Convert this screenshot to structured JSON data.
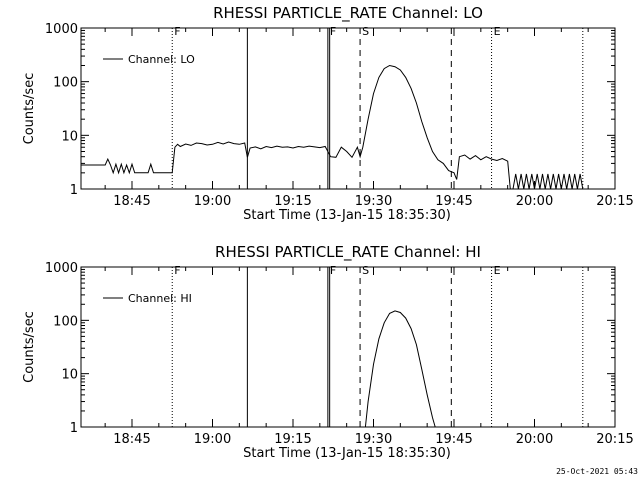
{
  "footer": {
    "timestamp": "25-Oct-2021 05:43"
  },
  "chart_data": [
    {
      "type": "line",
      "title": "RHESSI PARTICLE_RATE Channel: LO",
      "xlabel": "Start Time (13-Jan-15 18:35:30)",
      "ylabel": "Counts/sec",
      "yscale": "log",
      "ylim": [
        1,
        1000
      ],
      "xlim": [
        "18:35:30",
        "20:15:00"
      ],
      "yticks": [
        "1",
        "10",
        "100",
        "1000"
      ],
      "xticks": [
        "18:45",
        "19:00",
        "19:15",
        "19:30",
        "19:45",
        "20:00",
        "20:15"
      ],
      "legend": {
        "position": "top-left",
        "label": "Channel: LO"
      },
      "markers": [
        {
          "time": "18:52:30",
          "style": "dotted",
          "label": "F"
        },
        {
          "time": "19:06:30",
          "style": "solid",
          "label": ""
        },
        {
          "time": "19:21:30",
          "style": "solid",
          "label": "F"
        },
        {
          "time": "19:21:50",
          "style": "solid",
          "label": ""
        },
        {
          "time": "19:27:30",
          "style": "dashed",
          "label": "S"
        },
        {
          "time": "19:44:30",
          "style": "dashed",
          "label": ""
        },
        {
          "time": "19:52:00",
          "style": "dotted",
          "label": "E"
        },
        {
          "time": "20:09:00",
          "style": "dotted",
          "label": ""
        }
      ],
      "series": [
        {
          "name": "Channel: LO",
          "x": [
            "18:35:30",
            "18:40:00",
            "18:40:30",
            "18:41:00",
            "18:41:30",
            "18:42:00",
            "18:42:30",
            "18:43:00",
            "18:43:30",
            "18:44:00",
            "18:44:30",
            "18:45:00",
            "18:45:30",
            "18:46:00",
            "18:46:30",
            "18:47:00",
            "18:47:30",
            "18:48:00",
            "18:48:30",
            "18:49:00",
            "18:49:30",
            "18:50:00",
            "18:50:30",
            "18:51:00",
            "18:51:30",
            "18:52:00",
            "18:52:30",
            "18:53:00",
            "18:53:30",
            "18:54:00",
            "18:55:00",
            "18:56:00",
            "18:57:00",
            "18:58:00",
            "18:59:00",
            "19:00:00",
            "19:01:00",
            "19:02:00",
            "19:03:00",
            "19:04:00",
            "19:05:00",
            "19:06:00",
            "19:06:30",
            "19:07:00",
            "19:08:00",
            "19:09:00",
            "19:10:00",
            "19:11:00",
            "19:12:00",
            "19:13:00",
            "19:14:00",
            "19:15:00",
            "19:16:00",
            "19:17:00",
            "19:18:00",
            "19:19:00",
            "19:20:00",
            "19:21:00",
            "19:22:00",
            "19:23:00",
            "19:24:00",
            "19:25:00",
            "19:26:00",
            "19:27:00",
            "19:27:30",
            "19:28:00",
            "19:29:00",
            "19:30:00",
            "19:31:00",
            "19:32:00",
            "19:33:00",
            "19:34:00",
            "19:35:00",
            "19:36:00",
            "19:37:00",
            "19:38:00",
            "19:39:00",
            "19:40:00",
            "19:41:00",
            "19:42:00",
            "19:43:00",
            "19:44:00",
            "19:45:00",
            "19:45:30",
            "19:46:00",
            "19:47:00",
            "19:48:00",
            "19:49:00",
            "19:50:00",
            "19:51:00",
            "19:52:00",
            "19:53:00",
            "19:54:00",
            "19:55:00",
            "19:55:30",
            "19:56:00",
            "19:56:30",
            "19:57:00",
            "19:57:30",
            "19:58:00",
            "19:58:30",
            "19:59:00",
            "19:59:30",
            "20:00:00",
            "20:00:30",
            "20:01:00",
            "20:01:30",
            "20:02:00",
            "20:02:30",
            "20:03:00",
            "20:03:30",
            "20:04:00",
            "20:04:30",
            "20:05:00",
            "20:05:30",
            "20:06:00",
            "20:06:30",
            "20:07:00",
            "20:07:30",
            "20:08:00",
            "20:08:30",
            "20:09:00"
          ],
          "y": [
            2.8,
            2.8,
            3.6,
            2.8,
            2.0,
            2.9,
            2.0,
            2.9,
            2.0,
            2.8,
            2.0,
            2.9,
            2.0,
            2.0,
            2.0,
            2.0,
            2.0,
            2.0,
            2.9,
            2.0,
            2.0,
            2.0,
            2.0,
            2.0,
            2.0,
            2.0,
            2.0,
            6.0,
            6.8,
            6.2,
            6.9,
            6.5,
            7.2,
            7.0,
            6.6,
            6.8,
            7.4,
            6.9,
            7.5,
            7.0,
            6.8,
            7.2,
            3.9,
            5.8,
            6.1,
            5.6,
            6.2,
            5.9,
            6.3,
            6.0,
            6.1,
            5.8,
            6.2,
            6.0,
            6.3,
            6.1,
            5.9,
            6.2,
            4.0,
            3.9,
            6.0,
            5.0,
            3.9,
            6.0,
            4.0,
            6.0,
            20,
            60,
            120,
            175,
            200,
            190,
            165,
            120,
            75,
            40,
            18,
            9,
            5,
            3.5,
            3.0,
            2.2,
            2.0,
            1.5,
            4.0,
            4.3,
            3.6,
            4.2,
            3.5,
            4.0,
            3.6,
            3.4,
            3.7,
            3.3,
            1.0,
            1.0,
            1.9,
            1.0,
            1.9,
            1.0,
            1.9,
            1.0,
            1.9,
            1.0,
            1.9,
            1.0,
            1.9,
            1.0,
            1.9,
            1.0,
            1.9,
            1.0,
            1.9,
            1.0,
            1.9,
            1.0,
            1.9,
            1.0,
            1.9,
            1.0,
            1.9,
            1.0
          ]
        }
      ]
    },
    {
      "type": "line",
      "title": "RHESSI PARTICLE_RATE Channel: HI",
      "xlabel": "Start Time (13-Jan-15 18:35:30)",
      "ylabel": "Counts/sec",
      "yscale": "log",
      "ylim": [
        1,
        1000
      ],
      "xlim": [
        "18:35:30",
        "20:15:00"
      ],
      "yticks": [
        "1",
        "10",
        "100",
        "1000"
      ],
      "xticks": [
        "18:45",
        "19:00",
        "19:15",
        "19:30",
        "19:45",
        "20:00",
        "20:15"
      ],
      "legend": {
        "position": "top-left",
        "label": "Channel: HI"
      },
      "markers": [
        {
          "time": "18:52:30",
          "style": "dotted",
          "label": "F"
        },
        {
          "time": "19:06:30",
          "style": "solid",
          "label": ""
        },
        {
          "time": "19:21:30",
          "style": "solid",
          "label": "F"
        },
        {
          "time": "19:21:50",
          "style": "solid",
          "label": ""
        },
        {
          "time": "19:27:30",
          "style": "dashed",
          "label": "S"
        },
        {
          "time": "19:44:30",
          "style": "dashed",
          "label": ""
        },
        {
          "time": "19:52:00",
          "style": "dotted",
          "label": "E"
        },
        {
          "time": "20:09:00",
          "style": "dotted",
          "label": ""
        }
      ],
      "series": [
        {
          "name": "Channel: HI",
          "x": [
            "19:28:30",
            "19:29:00",
            "19:30:00",
            "19:31:00",
            "19:32:00",
            "19:33:00",
            "19:34:00",
            "19:35:00",
            "19:36:00",
            "19:37:00",
            "19:38:00",
            "19:39:00",
            "19:40:00",
            "19:41:00",
            "19:41:30"
          ],
          "y": [
            1.0,
            3.0,
            15,
            45,
            90,
            135,
            150,
            140,
            110,
            70,
            35,
            12,
            4,
            1.5,
            1.0
          ]
        }
      ]
    }
  ]
}
